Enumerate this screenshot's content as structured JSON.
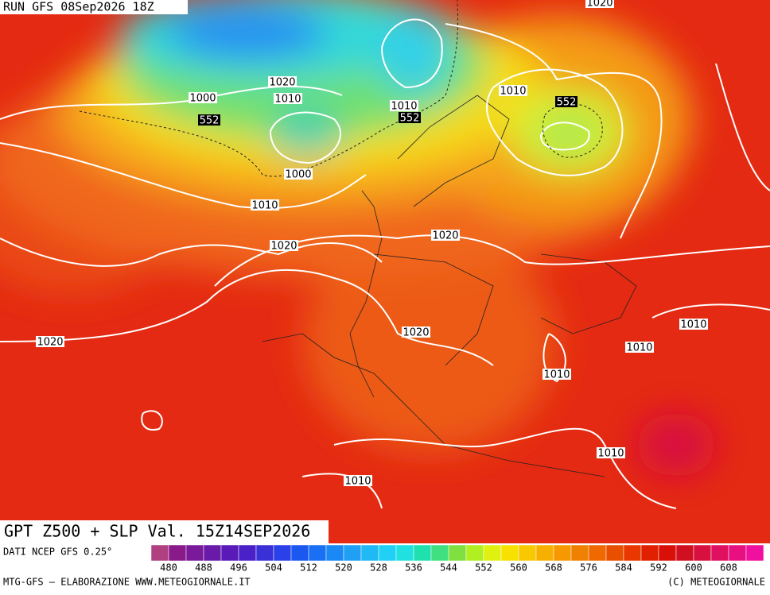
{
  "header": {
    "run": "RUN GFS 08Sep2026 18Z"
  },
  "map": {
    "contour_labels": [
      1020,
      1020,
      1010,
      1000,
      552,
      1010,
      552,
      1010,
      552,
      1000,
      1010,
      1020,
      1020,
      1020,
      1020,
      1010,
      1010,
      1010,
      1010,
      1010
    ]
  },
  "title": "GPT Z500 + SLP Val. 15Z14SEP2026",
  "colorbar": {
    "source": "DATI NCEP GFS 0.25°",
    "labels": [
      480,
      488,
      496,
      504,
      512,
      520,
      528,
      536,
      544,
      552,
      560,
      568,
      576,
      584,
      592,
      600,
      608
    ],
    "colors": [
      "#b04080",
      "#8a1a8a",
      "#7a1a9a",
      "#6a1aa8",
      "#5a1ab8",
      "#4a20c8",
      "#3a30d8",
      "#2a40e8",
      "#1a58f0",
      "#1a70f5",
      "#1a88f5",
      "#20a0f5",
      "#20b8f5",
      "#20d0f5",
      "#20e0e0",
      "#20e0b0",
      "#40e080",
      "#80e040",
      "#b0f020",
      "#e0f010",
      "#f8e000",
      "#f8c800",
      "#f8b000",
      "#f89800",
      "#f08000",
      "#f06800",
      "#e85000",
      "#e83800",
      "#e02000",
      "#d81008",
      "#d01020",
      "#d81040",
      "#e01060",
      "#e81080",
      "#f010a0"
    ]
  },
  "footer": {
    "left": "MTG-GFS — ELABORAZIONE WWW.METEOGIORNALE.IT",
    "right": "(C) METEOGIORNALE"
  }
}
